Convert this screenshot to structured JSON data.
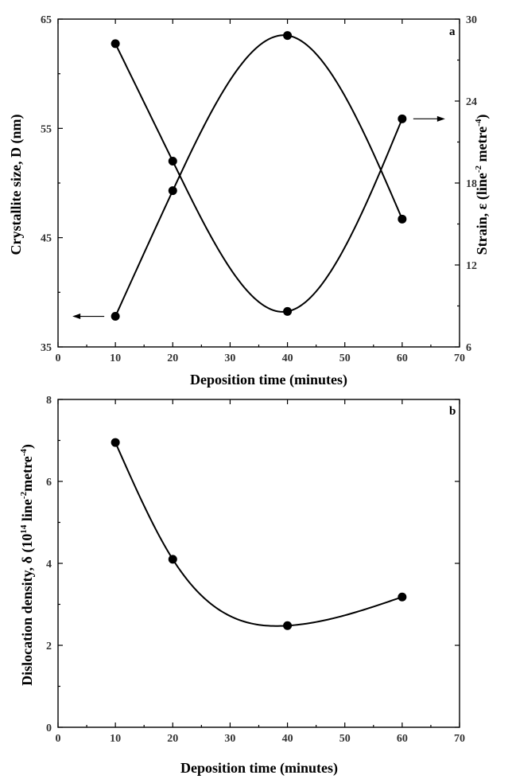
{
  "chart_data": [
    {
      "panel": "a",
      "type": "line",
      "xlabel": "Deposition time (minutes)",
      "xlim": [
        0,
        70
      ],
      "xticks": [
        0,
        10,
        20,
        30,
        40,
        50,
        60,
        70
      ],
      "ylabel": "Crystallite size, D (nm)",
      "ylim": [
        35,
        65
      ],
      "yticks": [
        35,
        45,
        55,
        65
      ],
      "y2label_main": "Strain, ε (line",
      "y2label_sup1": "-2",
      "y2label_mid": " metre",
      "y2label_sup2": "-4",
      "y2label_end": ")",
      "y2lim": [
        6,
        30
      ],
      "y2ticks": [
        6,
        12,
        18,
        24,
        30
      ],
      "smooth": true,
      "series": [
        {
          "axis": "left",
          "x": [
            10,
            20,
            40,
            60
          ],
          "y": [
            37.8,
            49.3,
            63.5,
            46.7
          ],
          "arrow": "left"
        },
        {
          "axis": "right",
          "x": [
            10,
            20,
            40,
            60
          ],
          "y": [
            28.2,
            19.6,
            8.6,
            22.7
          ],
          "arrow": "right"
        }
      ]
    },
    {
      "panel": "b",
      "type": "line",
      "xlabel": "Deposition time (minutes)",
      "xlim": [
        0,
        70
      ],
      "xticks": [
        0,
        10,
        20,
        30,
        40,
        50,
        60,
        70
      ],
      "ylabel_main": "Dislocation density, δ (10",
      "ylabel_sup1": "14",
      "ylabel_mid": " line",
      "ylabel_sup2": "-2",
      "ylabel_mid2": "metre",
      "ylabel_sup3": "-4",
      "ylabel_end": ")",
      "ylim": [
        0,
        8
      ],
      "yticks": [
        0,
        2,
        4,
        6,
        8
      ],
      "smooth": true,
      "series": [
        {
          "x": [
            10,
            20,
            40,
            60
          ],
          "y": [
            6.95,
            4.1,
            2.48,
            3.18
          ]
        }
      ]
    }
  ]
}
